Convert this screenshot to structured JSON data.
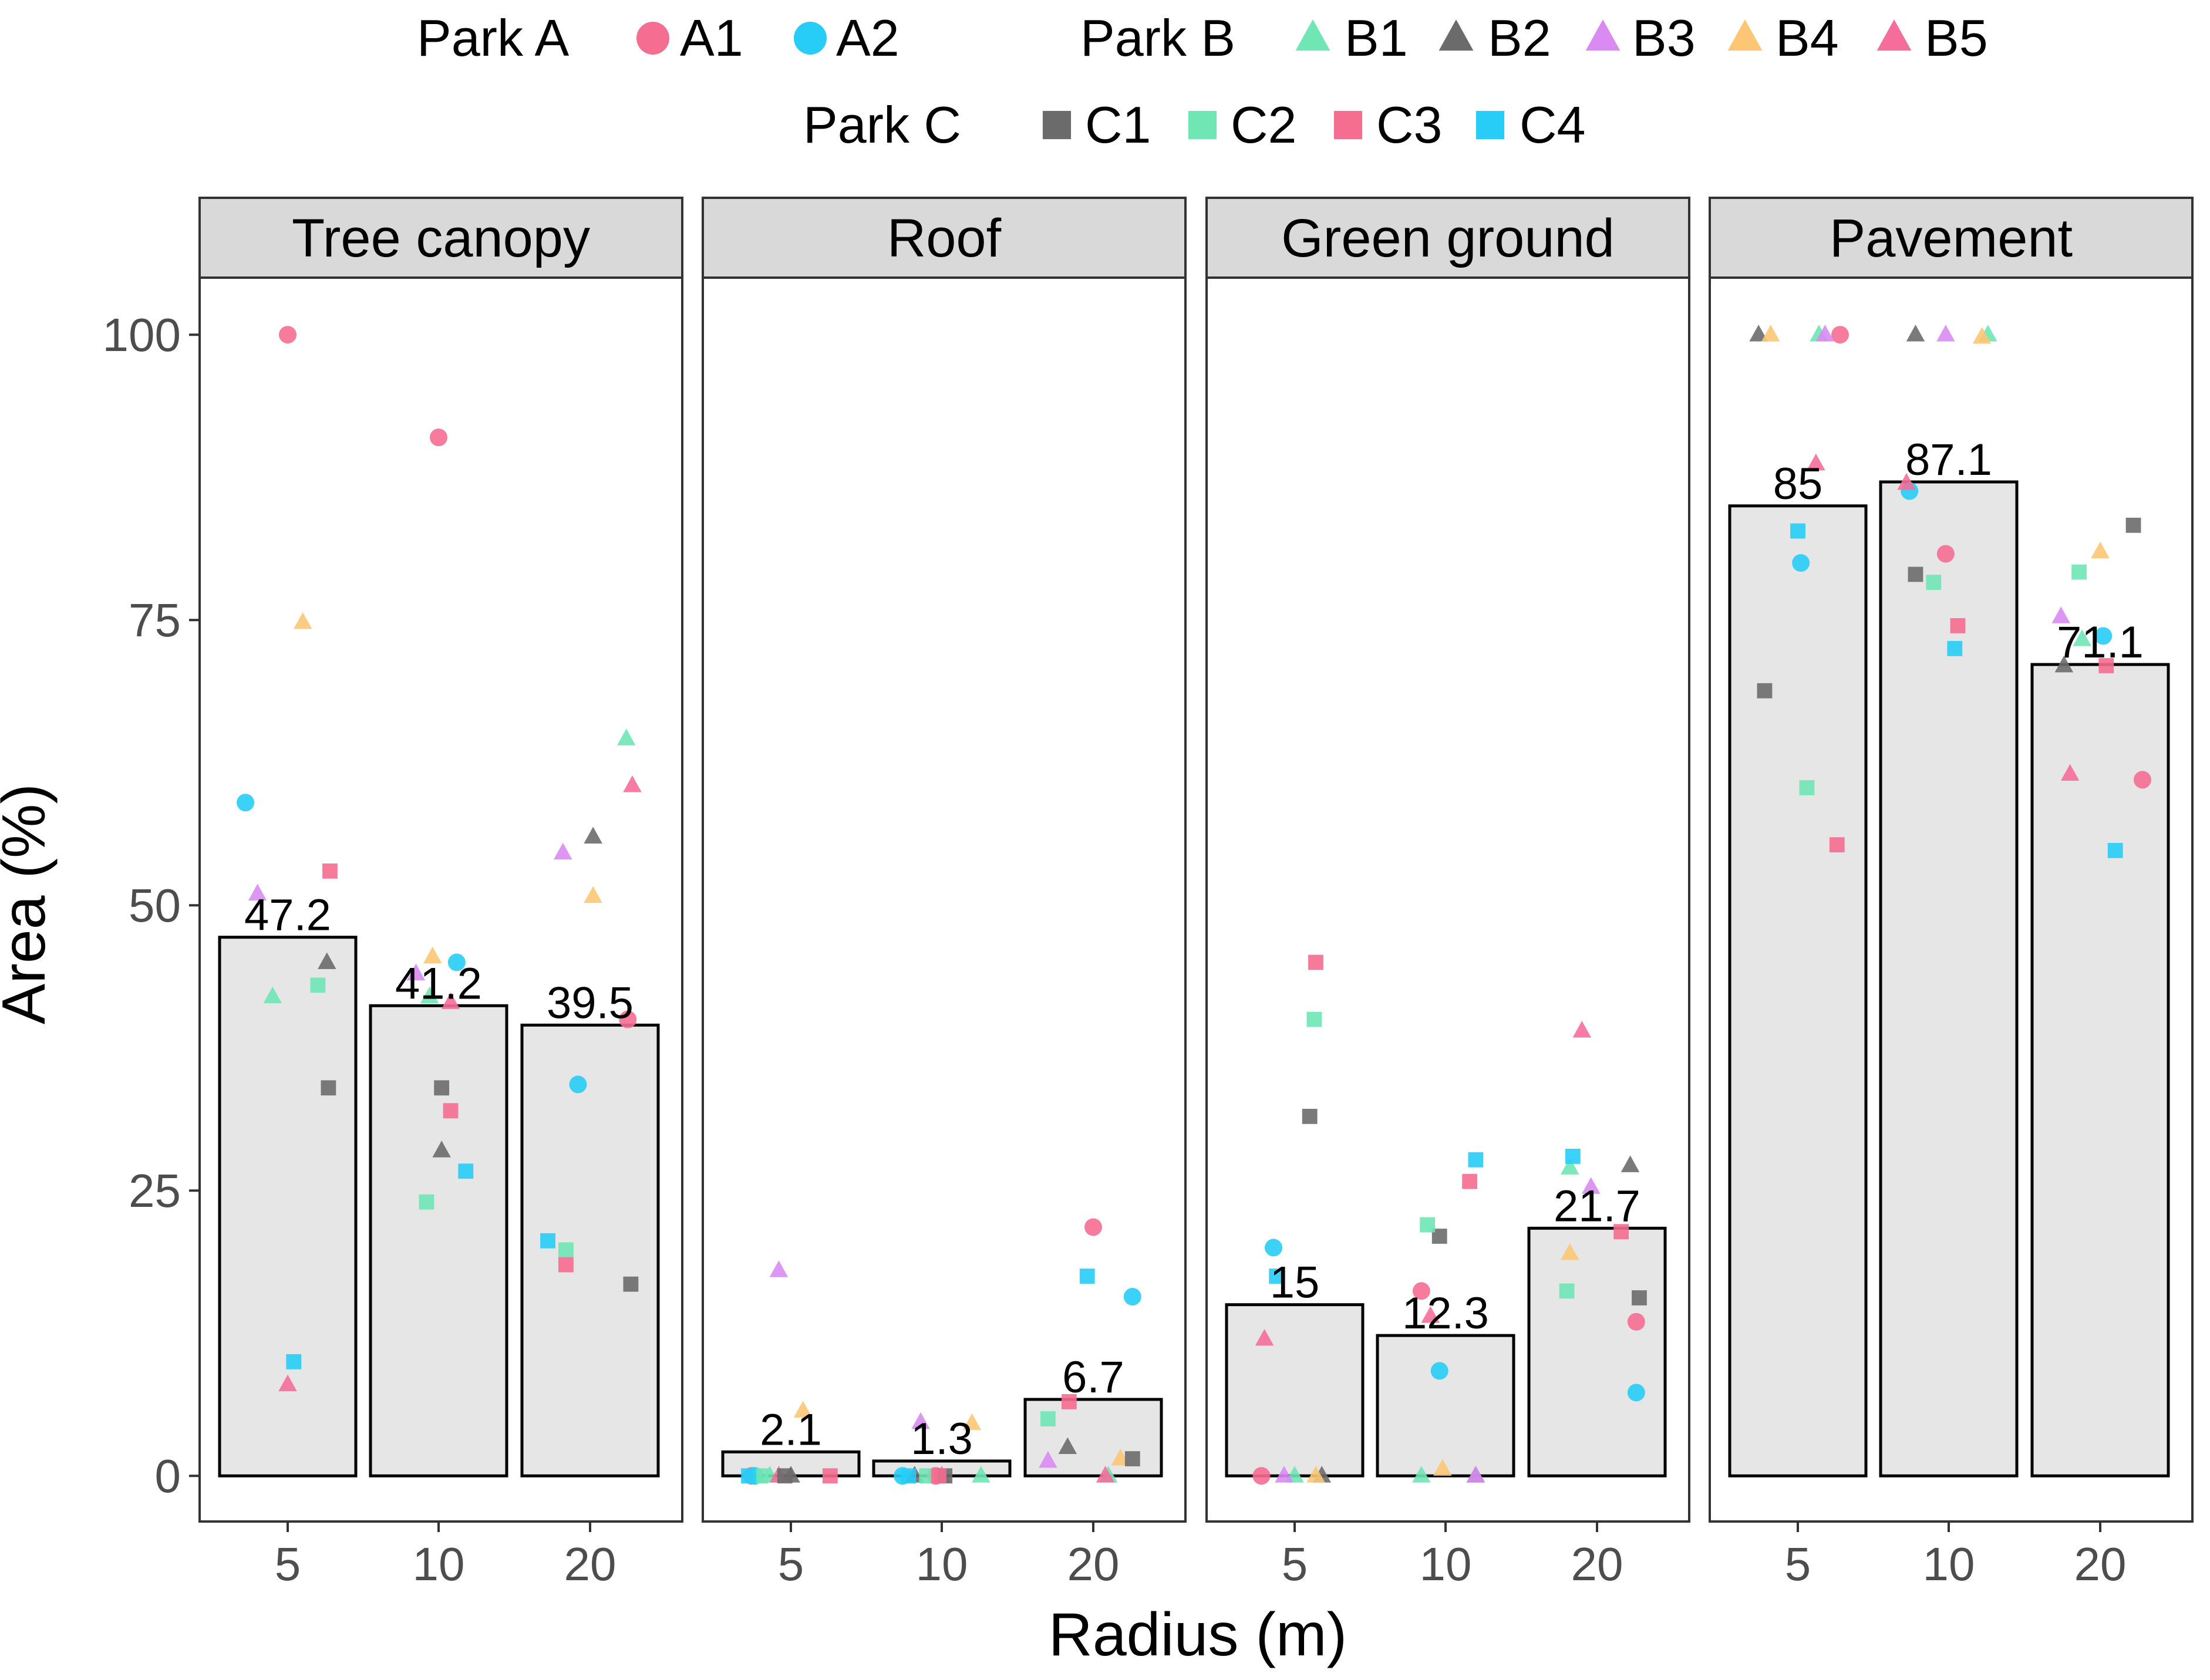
{
  "chart_data": {
    "type": "bar",
    "xlabel": "Radius (m)",
    "ylabel": "Area (%)",
    "ylim": [
      -4,
      105
    ],
    "yticks": [
      0,
      25,
      50,
      75,
      100
    ],
    "categories": [
      "5",
      "10",
      "20"
    ],
    "grid": false,
    "legend": {
      "position": "top",
      "groups": [
        {
          "title": "Park A",
          "shape": "circle",
          "entries": [
            {
              "name": "A1",
              "color": "#F56D91"
            },
            {
              "name": "A2",
              "color": "#27CDF7"
            }
          ]
        },
        {
          "title": "Park B",
          "shape": "triangle",
          "entries": [
            {
              "name": "B1",
              "color": "#6FE6B4"
            },
            {
              "name": "B2",
              "color": "#6B6B6B"
            },
            {
              "name": "B3",
              "color": "#D98BF2"
            },
            {
              "name": "B4",
              "color": "#FCC674"
            },
            {
              "name": "B5",
              "color": "#F56D9B"
            }
          ]
        },
        {
          "title": "Park C",
          "shape": "square",
          "entries": [
            {
              "name": "C1",
              "color": "#6B6B6B"
            },
            {
              "name": "C2",
              "color": "#6FE6B4"
            },
            {
              "name": "C3",
              "color": "#F56D8F"
            },
            {
              "name": "C4",
              "color": "#27CDF7"
            }
          ]
        }
      ]
    },
    "bar_style": {
      "fill": "#E6E6E6",
      "stroke": "#000000"
    },
    "panel_style": {
      "strip_fill": "#D9D9D9",
      "border": "#333333"
    },
    "panels": [
      {
        "title": "Tree canopy",
        "bars": [
          47.2,
          41.2,
          39.5
        ],
        "bar_labels": [
          "47.2",
          "41.2",
          "39.5"
        ],
        "points": [
          {
            "s": "A1",
            "c": 0,
            "j": 0.0,
            "v": 100
          },
          {
            "s": "A2",
            "c": 0,
            "j": -0.28,
            "v": 59
          },
          {
            "s": "B1",
            "c": 0,
            "j": -0.1,
            "v": 42
          },
          {
            "s": "B2",
            "c": 0,
            "j": 0.26,
            "v": 45
          },
          {
            "s": "B3",
            "c": 0,
            "j": -0.2,
            "v": 51
          },
          {
            "s": "B4",
            "c": 0,
            "j": 0.1,
            "v": 74.8
          },
          {
            "s": "B5",
            "c": 0,
            "j": 0.0,
            "v": 8
          },
          {
            "s": "C1",
            "c": 0,
            "j": 0.27,
            "v": 34
          },
          {
            "s": "C2",
            "c": 0,
            "j": 0.2,
            "v": 43
          },
          {
            "s": "C3",
            "c": 0,
            "j": 0.28,
            "v": 53
          },
          {
            "s": "C4",
            "c": 0,
            "j": 0.04,
            "v": 10
          },
          {
            "s": "A1",
            "c": 1,
            "j": 0.0,
            "v": 91
          },
          {
            "s": "A2",
            "c": 1,
            "j": 0.12,
            "v": 45
          },
          {
            "s": "B1",
            "c": 1,
            "j": -0.06,
            "v": 42
          },
          {
            "s": "B2",
            "c": 1,
            "j": 0.02,
            "v": 28.5
          },
          {
            "s": "B3",
            "c": 1,
            "j": -0.15,
            "v": 44
          },
          {
            "s": "B4",
            "c": 1,
            "j": -0.04,
            "v": 45.5
          },
          {
            "s": "B5",
            "c": 1,
            "j": 0.08,
            "v": 41.5
          },
          {
            "s": "C1",
            "c": 1,
            "j": 0.02,
            "v": 34
          },
          {
            "s": "C2",
            "c": 1,
            "j": -0.08,
            "v": 24
          },
          {
            "s": "C3",
            "c": 1,
            "j": 0.08,
            "v": 32
          },
          {
            "s": "C4",
            "c": 1,
            "j": 0.18,
            "v": 26.7
          },
          {
            "s": "A1",
            "c": 2,
            "j": 0.25,
            "v": 40
          },
          {
            "s": "A2",
            "c": 2,
            "j": -0.08,
            "v": 34.3
          },
          {
            "s": "B1",
            "c": 2,
            "j": 0.24,
            "v": 64.6
          },
          {
            "s": "B2",
            "c": 2,
            "j": 0.02,
            "v": 56
          },
          {
            "s": "B3",
            "c": 2,
            "j": -0.18,
            "v": 54.6
          },
          {
            "s": "B4",
            "c": 2,
            "j": 0.02,
            "v": 50.8
          },
          {
            "s": "B5",
            "c": 2,
            "j": 0.28,
            "v": 60.5
          },
          {
            "s": "C1",
            "c": 2,
            "j": 0.27,
            "v": 16.8
          },
          {
            "s": "C2",
            "c": 2,
            "j": -0.16,
            "v": 19.8
          },
          {
            "s": "C3",
            "c": 2,
            "j": -0.16,
            "v": 18.5
          },
          {
            "s": "C4",
            "c": 2,
            "j": -0.28,
            "v": 20.6
          }
        ]
      },
      {
        "title": "Roof",
        "bars": [
          2.1,
          1.3,
          6.7
        ],
        "bar_labels": [
          "2.1",
          "1.3",
          "6.7"
        ],
        "points": [
          {
            "s": "A1",
            "c": 0,
            "j": -0.26,
            "v": 0
          },
          {
            "s": "A2",
            "c": 0,
            "j": -0.24,
            "v": 0
          },
          {
            "s": "B1",
            "c": 0,
            "j": -0.14,
            "v": 0
          },
          {
            "s": "B2",
            "c": 0,
            "j": 0.0,
            "v": 0
          },
          {
            "s": "B3",
            "c": 0,
            "j": -0.08,
            "v": 18
          },
          {
            "s": "B4",
            "c": 0,
            "j": 0.08,
            "v": 5.7
          },
          {
            "s": "B5",
            "c": 0,
            "j": -0.08,
            "v": 0
          },
          {
            "s": "C1",
            "c": 0,
            "j": -0.04,
            "v": 0
          },
          {
            "s": "C2",
            "c": 0,
            "j": -0.2,
            "v": 0
          },
          {
            "s": "C3",
            "c": 0,
            "j": 0.26,
            "v": 0
          },
          {
            "s": "C4",
            "c": 0,
            "j": -0.28,
            "v": 0
          },
          {
            "s": "A1",
            "c": 1,
            "j": -0.04,
            "v": 0
          },
          {
            "s": "A2",
            "c": 1,
            "j": -0.26,
            "v": 0
          },
          {
            "s": "B1",
            "c": 1,
            "j": 0.26,
            "v": 0
          },
          {
            "s": "B2",
            "c": 1,
            "j": -0.18,
            "v": 0
          },
          {
            "s": "B3",
            "c": 1,
            "j": -0.14,
            "v": 4.7
          },
          {
            "s": "B4",
            "c": 1,
            "j": 0.2,
            "v": 4.6
          },
          {
            "s": "B5",
            "c": 1,
            "j": 0.0,
            "v": 0
          },
          {
            "s": "C1",
            "c": 1,
            "j": 0.02,
            "v": 0
          },
          {
            "s": "C2",
            "c": 1,
            "j": -0.1,
            "v": 0
          },
          {
            "s": "C3",
            "c": 1,
            "j": -0.02,
            "v": 0
          },
          {
            "s": "C4",
            "c": 1,
            "j": -0.22,
            "v": 0
          },
          {
            "s": "A1",
            "c": 2,
            "j": 0.0,
            "v": 21.8
          },
          {
            "s": "A2",
            "c": 2,
            "j": 0.26,
            "v": 15.7
          },
          {
            "s": "B1",
            "c": 2,
            "j": 0.1,
            "v": 0
          },
          {
            "s": "B2",
            "c": 2,
            "j": -0.17,
            "v": 2.5
          },
          {
            "s": "B3",
            "c": 2,
            "j": -0.3,
            "v": 1.3
          },
          {
            "s": "B4",
            "c": 2,
            "j": 0.18,
            "v": 1.5
          },
          {
            "s": "B5",
            "c": 2,
            "j": 0.08,
            "v": 0
          },
          {
            "s": "C1",
            "c": 2,
            "j": 0.26,
            "v": 1.5
          },
          {
            "s": "C2",
            "c": 2,
            "j": -0.3,
            "v": 5
          },
          {
            "s": "C3",
            "c": 2,
            "j": -0.16,
            "v": 6.5
          },
          {
            "s": "C4",
            "c": 2,
            "j": -0.04,
            "v": 17.5
          }
        ]
      },
      {
        "title": "Green ground",
        "bars": [
          15,
          12.3,
          21.7
        ],
        "bar_labels": [
          "15",
          "12.3",
          "21.7"
        ],
        "points": [
          {
            "s": "A1",
            "c": 0,
            "j": -0.22,
            "v": 0
          },
          {
            "s": "A2",
            "c": 0,
            "j": -0.14,
            "v": 20
          },
          {
            "s": "B1",
            "c": 0,
            "j": 0.0,
            "v": 0
          },
          {
            "s": "B2",
            "c": 0,
            "j": 0.18,
            "v": 0
          },
          {
            "s": "B3",
            "c": 0,
            "j": -0.07,
            "v": 0
          },
          {
            "s": "B4",
            "c": 0,
            "j": 0.14,
            "v": 0
          },
          {
            "s": "B5",
            "c": 0,
            "j": -0.2,
            "v": 12
          },
          {
            "s": "C1",
            "c": 0,
            "j": 0.1,
            "v": 31.5
          },
          {
            "s": "C2",
            "c": 0,
            "j": 0.13,
            "v": 40
          },
          {
            "s": "C3",
            "c": 0,
            "j": 0.14,
            "v": 45
          },
          {
            "s": "C4",
            "c": 0,
            "j": -0.12,
            "v": 17.5
          },
          {
            "s": "A1",
            "c": 1,
            "j": -0.16,
            "v": 16.2
          },
          {
            "s": "A2",
            "c": 1,
            "j": -0.04,
            "v": 9.2
          },
          {
            "s": "B1",
            "c": 1,
            "j": -0.16,
            "v": 0
          },
          {
            "s": "B2",
            "c": 1,
            "j": 0.2,
            "v": 0
          },
          {
            "s": "B3",
            "c": 1,
            "j": 0.2,
            "v": 0
          },
          {
            "s": "B4",
            "c": 1,
            "j": -0.02,
            "v": 0.6
          },
          {
            "s": "B5",
            "c": 1,
            "j": -0.1,
            "v": 14
          },
          {
            "s": "C1",
            "c": 1,
            "j": -0.04,
            "v": 21
          },
          {
            "s": "C2",
            "c": 1,
            "j": -0.12,
            "v": 22
          },
          {
            "s": "C3",
            "c": 1,
            "j": 0.16,
            "v": 25.8
          },
          {
            "s": "C4",
            "c": 1,
            "j": 0.2,
            "v": 27.7
          },
          {
            "s": "A1",
            "c": 2,
            "j": 0.26,
            "v": 13.5
          },
          {
            "s": "A2",
            "c": 2,
            "j": 0.26,
            "v": 7.3
          },
          {
            "s": "B1",
            "c": 2,
            "j": -0.18,
            "v": 27
          },
          {
            "s": "B2",
            "c": 2,
            "j": 0.22,
            "v": 27.2
          },
          {
            "s": "B3",
            "c": 2,
            "j": -0.04,
            "v": 25.3
          },
          {
            "s": "B4",
            "c": 2,
            "j": -0.18,
            "v": 19.5
          },
          {
            "s": "B5",
            "c": 2,
            "j": -0.1,
            "v": 39
          },
          {
            "s": "C1",
            "c": 2,
            "j": 0.28,
            "v": 15.6
          },
          {
            "s": "C2",
            "c": 2,
            "j": -0.2,
            "v": 16.2
          },
          {
            "s": "C3",
            "c": 2,
            "j": 0.16,
            "v": 21.4
          },
          {
            "s": "C4",
            "c": 2,
            "j": -0.16,
            "v": 28
          }
        ]
      },
      {
        "title": "Pavement",
        "bars": [
          85,
          87.1,
          71.1
        ],
        "bar_labels": [
          "85",
          "87.1",
          "71.1"
        ],
        "points": [
          {
            "s": "A1",
            "c": 0,
            "j": 0.28,
            "v": 100
          },
          {
            "s": "A2",
            "c": 0,
            "j": 0.02,
            "v": 80
          },
          {
            "s": "B1",
            "c": 0,
            "j": 0.14,
            "v": 100
          },
          {
            "s": "B2",
            "c": 0,
            "j": -0.26,
            "v": 100
          },
          {
            "s": "B3",
            "c": 0,
            "j": 0.18,
            "v": 100
          },
          {
            "s": "B4",
            "c": 0,
            "j": -0.18,
            "v": 100
          },
          {
            "s": "B5",
            "c": 0,
            "j": 0.12,
            "v": 88.7
          },
          {
            "s": "C1",
            "c": 0,
            "j": -0.22,
            "v": 68.8
          },
          {
            "s": "C2",
            "c": 0,
            "j": 0.06,
            "v": 60.3
          },
          {
            "s": "C3",
            "c": 0,
            "j": 0.26,
            "v": 55.3
          },
          {
            "s": "C4",
            "c": 0,
            "j": 0.0,
            "v": 82.8
          },
          {
            "s": "A1",
            "c": 1,
            "j": -0.02,
            "v": 80.8
          },
          {
            "s": "A2",
            "c": 1,
            "j": -0.26,
            "v": 86.3
          },
          {
            "s": "B1",
            "c": 1,
            "j": 0.26,
            "v": 100
          },
          {
            "s": "B2",
            "c": 1,
            "j": -0.22,
            "v": 100
          },
          {
            "s": "B3",
            "c": 1,
            "j": -0.02,
            "v": 100
          },
          {
            "s": "B4",
            "c": 1,
            "j": 0.22,
            "v": 99.8
          },
          {
            "s": "B5",
            "c": 1,
            "j": -0.28,
            "v": 87
          },
          {
            "s": "C1",
            "c": 1,
            "j": -0.22,
            "v": 79
          },
          {
            "s": "C2",
            "c": 1,
            "j": -0.1,
            "v": 78.3
          },
          {
            "s": "C3",
            "c": 1,
            "j": 0.06,
            "v": 74.5
          },
          {
            "s": "C4",
            "c": 1,
            "j": 0.04,
            "v": 72.5
          },
          {
            "s": "A1",
            "c": 2,
            "j": 0.28,
            "v": 61
          },
          {
            "s": "A2",
            "c": 2,
            "j": 0.02,
            "v": 73.6
          },
          {
            "s": "B1",
            "c": 2,
            "j": -0.12,
            "v": 73.3
          },
          {
            "s": "B2",
            "c": 2,
            "j": -0.24,
            "v": 71
          },
          {
            "s": "B3",
            "c": 2,
            "j": -0.26,
            "v": 75.3
          },
          {
            "s": "B4",
            "c": 2,
            "j": 0.0,
            "v": 81
          },
          {
            "s": "B5",
            "c": 2,
            "j": -0.2,
            "v": 61.5
          },
          {
            "s": "C1",
            "c": 2,
            "j": 0.22,
            "v": 83.3
          },
          {
            "s": "C2",
            "c": 2,
            "j": -0.14,
            "v": 79.2
          },
          {
            "s": "C3",
            "c": 2,
            "j": 0.04,
            "v": 71
          },
          {
            "s": "C4",
            "c": 2,
            "j": 0.1,
            "v": 54.8
          }
        ]
      }
    ]
  }
}
